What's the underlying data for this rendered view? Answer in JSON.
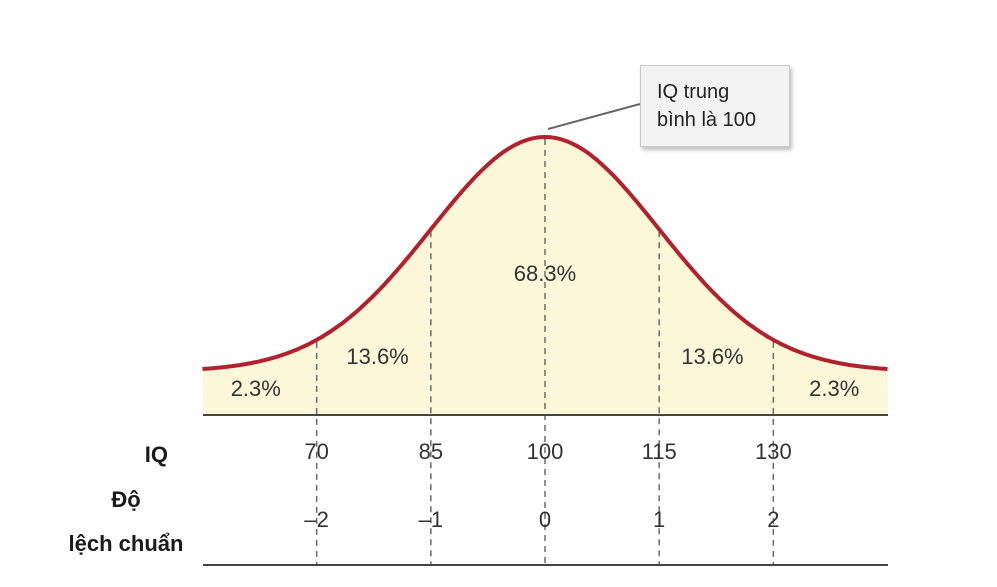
{
  "chart_data": {
    "type": "area",
    "distribution": "normal",
    "mean": 100,
    "sd": 15,
    "x_range": [
      55,
      145
    ],
    "colors": {
      "curve": "#b2222e",
      "fill": "#fdf7d9",
      "axis": "#444444"
    },
    "region_labels": [
      {
        "id": "left-tail",
        "label": "2.3%",
        "x_center": 62
      },
      {
        "id": "left-mid",
        "label": "13.6%",
        "x_center": 78
      },
      {
        "id": "center",
        "label": "68.3%",
        "x_center": 100
      },
      {
        "id": "right-mid",
        "label": "13.6%",
        "x_center": 122
      },
      {
        "id": "right-tail",
        "label": "2.3%",
        "x_center": 138
      }
    ],
    "boundaries": [
      70,
      85,
      100,
      115,
      130
    ],
    "rows": [
      {
        "id": "iq",
        "label": "IQ",
        "ticks": [
          "70",
          "85",
          "100",
          "115",
          "130"
        ]
      },
      {
        "id": "sd",
        "label_lines": [
          "Độ",
          "lệch chuẩn"
        ],
        "ticks": [
          "–2",
          "–1",
          "0",
          "1",
          "2"
        ]
      }
    ],
    "annotation": {
      "lines": [
        "IQ trung",
        "bình là 100"
      ],
      "points_to_x": 100
    }
  }
}
